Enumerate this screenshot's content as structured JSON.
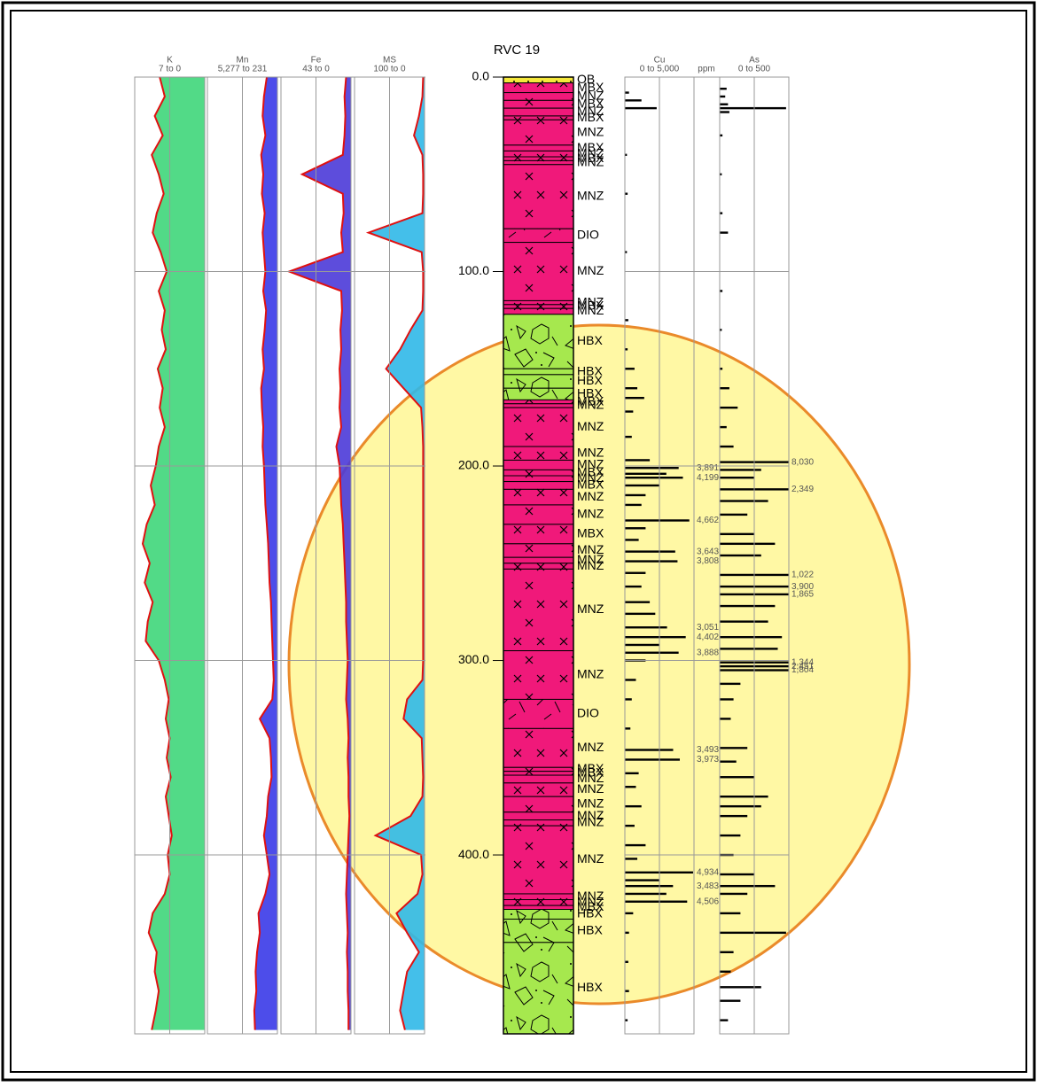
{
  "chart_data": {
    "type": "well-log",
    "title": "RVC 19",
    "ylim": [
      0,
      492
    ],
    "yticks": [
      {
        "value": 0,
        "label": "0.0"
      },
      {
        "value": 100,
        "label": "100.0"
      },
      {
        "value": 200,
        "label": "200.0"
      },
      {
        "value": 300,
        "label": "300.0"
      },
      {
        "value": 400,
        "label": "400.0"
      }
    ],
    "curve_depths": [
      0,
      10,
      20,
      30,
      40,
      50,
      60,
      70,
      80,
      90,
      100,
      110,
      120,
      130,
      140,
      150,
      160,
      170,
      180,
      190,
      200,
      210,
      220,
      230,
      240,
      250,
      260,
      270,
      280,
      290,
      300,
      310,
      320,
      330,
      340,
      350,
      360,
      370,
      380,
      390,
      400,
      410,
      420,
      430,
      440,
      450,
      460,
      470,
      480,
      490
    ],
    "curve_tracks": [
      {
        "name": "K",
        "range_label": "7 to 0",
        "xlim": [
          7,
          0
        ],
        "color": "#e01010",
        "fill": "#3fd67a",
        "values": [
          4.5,
          4.0,
          5.0,
          4.2,
          5.3,
          4.6,
          4.1,
          4.8,
          5.2,
          4.4,
          3.8,
          4.6,
          4.0,
          4.3,
          3.9,
          4.7,
          4.2,
          4.5,
          4.0,
          4.6,
          4.9,
          5.4,
          5.0,
          5.8,
          6.2,
          5.5,
          6.0,
          5.2,
          5.7,
          5.9,
          4.6,
          4.0,
          3.6,
          3.9,
          3.5,
          3.8,
          3.4,
          3.9,
          3.6,
          3.3,
          3.7,
          3.5,
          4.0,
          5.2,
          5.6,
          4.8,
          5.0,
          4.6,
          4.9,
          5.3
        ]
      },
      {
        "name": "Mn",
        "range_label": "5,277 to 231",
        "xlim": [
          5277,
          231
        ],
        "color": "#e01010",
        "fill": "#3a3ae8",
        "values": [
          1000,
          1200,
          1300,
          1100,
          1400,
          1250,
          1350,
          1150,
          1300,
          1200,
          1100,
          1250,
          1050,
          1150,
          1300,
          1200,
          1400,
          1350,
          1250,
          1300,
          1200,
          1150,
          1100,
          1000,
          900,
          850,
          800,
          700,
          650,
          600,
          550,
          500,
          600,
          1500,
          800,
          700,
          650,
          900,
          1000,
          1200,
          1000,
          800,
          1100,
          1600,
          1500,
          1700,
          1800,
          1750,
          1900,
          1850
        ]
      },
      {
        "name": "Fe",
        "range_label": "43 to 0",
        "xlim": [
          43,
          0
        ],
        "color": "#e01010",
        "fill": "#4b3ad8",
        "values": [
          3,
          4,
          3.5,
          4,
          5,
          30,
          5,
          4.5,
          6,
          5,
          38,
          6,
          5.5,
          6.5,
          6,
          7,
          6.5,
          7,
          6,
          9,
          7,
          6.5,
          6,
          5,
          4.5,
          4,
          3.5,
          3,
          3,
          2.5,
          2,
          2.5,
          3,
          2,
          1.5,
          2,
          1.5,
          1.5,
          1,
          1.5,
          2,
          2.5,
          3,
          2.5,
          2,
          2.5,
          2,
          2,
          1.5,
          1.5
        ]
      },
      {
        "name": "MS",
        "range_label": "100 to 0",
        "xlim": [
          100,
          0
        ],
        "color": "#e01010",
        "fill": "#30b8e8",
        "values": [
          2,
          3,
          8,
          15,
          3,
          2,
          2,
          3,
          80,
          4,
          2,
          2,
          3,
          20,
          35,
          55,
          30,
          5,
          3,
          2,
          2,
          2,
          2,
          2,
          2,
          2,
          2,
          2,
          2,
          2,
          2,
          3,
          25,
          30,
          4,
          3,
          2,
          3,
          20,
          70,
          5,
          3,
          10,
          40,
          25,
          8,
          25,
          30,
          35,
          28
        ]
      }
    ],
    "lithology_colors": {
      "OB": "#f5e83c",
      "MBX": "#f0197a",
      "MNZ": "#f0197a",
      "DIO": "#f0197a",
      "HBX": "#a6e84e"
    },
    "lithology_patterns": {
      "OB": "dots",
      "MBX": "crosses",
      "MNZ": "crosses",
      "DIO": "slashes",
      "HBX": "breccia"
    },
    "lithology": [
      {
        "top": 0,
        "bottom": 3,
        "code": "OB"
      },
      {
        "top": 3,
        "bottom": 8,
        "code": "MBX"
      },
      {
        "top": 8,
        "bottom": 12,
        "code": "MNZ"
      },
      {
        "top": 12,
        "bottom": 16,
        "code": "MBX"
      },
      {
        "top": 16,
        "bottom": 20,
        "code": "MNZ"
      },
      {
        "top": 20,
        "bottom": 22,
        "code": "MBX"
      },
      {
        "top": 22,
        "bottom": 35,
        "code": "MNZ"
      },
      {
        "top": 35,
        "bottom": 38,
        "code": "MBX"
      },
      {
        "top": 38,
        "bottom": 41,
        "code": "MNZ"
      },
      {
        "top": 41,
        "bottom": 43,
        "code": "MBX"
      },
      {
        "top": 43,
        "bottom": 45,
        "code": "MNZ"
      },
      {
        "top": 45,
        "bottom": 78,
        "code": "MNZ"
      },
      {
        "top": 78,
        "bottom": 85,
        "code": "DIO"
      },
      {
        "top": 85,
        "bottom": 115,
        "code": "MNZ"
      },
      {
        "top": 115,
        "bottom": 117,
        "code": "MNZ"
      },
      {
        "top": 117,
        "bottom": 119,
        "code": "MBX"
      },
      {
        "top": 119,
        "bottom": 122,
        "code": "MNZ"
      },
      {
        "top": 122,
        "bottom": 150,
        "code": "HBX"
      },
      {
        "top": 150,
        "bottom": 153,
        "code": "HBX"
      },
      {
        "top": 153,
        "bottom": 160,
        "code": "HBX"
      },
      {
        "top": 160,
        "bottom": 166,
        "code": "HBX"
      },
      {
        "top": 166,
        "bottom": 168,
        "code": "MBX"
      },
      {
        "top": 168,
        "bottom": 170,
        "code": "MNZ"
      },
      {
        "top": 170,
        "bottom": 190,
        "code": "MNZ"
      },
      {
        "top": 190,
        "bottom": 197,
        "code": "MNZ"
      },
      {
        "top": 197,
        "bottom": 202,
        "code": "MNZ"
      },
      {
        "top": 202,
        "bottom": 205,
        "code": "MBX"
      },
      {
        "top": 205,
        "bottom": 208,
        "code": "MNZ"
      },
      {
        "top": 208,
        "bottom": 212,
        "code": "MBX"
      },
      {
        "top": 212,
        "bottom": 220,
        "code": "MNZ"
      },
      {
        "top": 220,
        "bottom": 230,
        "code": "MNZ"
      },
      {
        "top": 230,
        "bottom": 240,
        "code": "MBX"
      },
      {
        "top": 240,
        "bottom": 247,
        "code": "MNZ"
      },
      {
        "top": 247,
        "bottom": 250,
        "code": "MNZ"
      },
      {
        "top": 250,
        "bottom": 253,
        "code": "MNZ"
      },
      {
        "top": 253,
        "bottom": 295,
        "code": "MNZ"
      },
      {
        "top": 295,
        "bottom": 320,
        "code": "MNZ"
      },
      {
        "top": 320,
        "bottom": 335,
        "code": "DIO"
      },
      {
        "top": 335,
        "bottom": 355,
        "code": "MNZ"
      },
      {
        "top": 355,
        "bottom": 357,
        "code": "MBX"
      },
      {
        "top": 357,
        "bottom": 359,
        "code": "MBX"
      },
      {
        "top": 359,
        "bottom": 363,
        "code": "MNZ"
      },
      {
        "top": 363,
        "bottom": 370,
        "code": "MNZ"
      },
      {
        "top": 370,
        "bottom": 378,
        "code": "MNZ"
      },
      {
        "top": 378,
        "bottom": 382,
        "code": "MNZ"
      },
      {
        "top": 382,
        "bottom": 385,
        "code": "MNZ"
      },
      {
        "top": 385,
        "bottom": 420,
        "code": "MNZ"
      },
      {
        "top": 420,
        "bottom": 423,
        "code": "MNZ"
      },
      {
        "top": 423,
        "bottom": 426,
        "code": "MNZ"
      },
      {
        "top": 426,
        "bottom": 428,
        "code": "MBX"
      },
      {
        "top": 428,
        "bottom": 433,
        "code": "HBX"
      },
      {
        "top": 433,
        "bottom": 445,
        "code": "HBX"
      },
      {
        "top": 445,
        "bottom": 492,
        "code": "HBX"
      }
    ],
    "bar_tracks": [
      {
        "name": "Cu",
        "range_label": "0 to 5,000",
        "unit": "ppm",
        "xlim": [
          0,
          5000
        ],
        "color": "#000000",
        "depths": [
          8,
          12,
          16,
          40,
          60,
          90,
          125,
          140,
          150,
          160,
          165,
          172,
          185,
          197,
          201,
          204,
          206,
          210,
          215,
          220,
          228,
          232,
          238,
          244,
          249,
          255,
          262,
          270,
          276,
          283,
          288,
          292,
          296,
          300,
          310,
          320,
          335,
          346,
          351,
          358,
          365,
          375,
          385,
          395,
          402,
          409,
          413,
          416,
          420,
          424,
          430,
          440,
          455,
          470,
          485
        ],
        "values": [
          300,
          1200,
          2300,
          150,
          200,
          150,
          250,
          200,
          700,
          900,
          1400,
          600,
          500,
          1800,
          3891,
          3000,
          4199,
          2500,
          1500,
          1200,
          4662,
          1500,
          1000,
          3643,
          3808,
          1500,
          1200,
          1800,
          2200,
          3051,
          4402,
          2500,
          3888,
          1500,
          800,
          500,
          400,
          3493,
          3973,
          1000,
          800,
          1200,
          700,
          1500,
          900,
          4934,
          2500,
          3483,
          3000,
          4506,
          600,
          300,
          250,
          300,
          200
        ],
        "value_labels": [
          null,
          null,
          null,
          null,
          null,
          null,
          null,
          null,
          null,
          null,
          null,
          null,
          null,
          null,
          "3,891",
          null,
          "4,199",
          null,
          null,
          null,
          "4,662",
          null,
          null,
          "3,643",
          "3,808",
          null,
          null,
          null,
          null,
          "3,051",
          "4,402",
          null,
          "3,888",
          null,
          null,
          null,
          null,
          "3,493",
          "3,973",
          null,
          null,
          null,
          null,
          null,
          null,
          "4,934",
          null,
          "3,483",
          null,
          "4,506",
          null,
          null,
          null,
          null,
          null
        ]
      },
      {
        "name": "As",
        "range_label": "0 to 500",
        "xlim": [
          0,
          500
        ],
        "color": "#000000",
        "depths": [
          6,
          10,
          14,
          16,
          18,
          30,
          50,
          70,
          80,
          110,
          130,
          150,
          160,
          170,
          180,
          190,
          198,
          202,
          206,
          212,
          218,
          225,
          235,
          240,
          246,
          256,
          262,
          266,
          272,
          280,
          288,
          294,
          301,
          303,
          305,
          312,
          320,
          330,
          345,
          352,
          360,
          370,
          375,
          380,
          390,
          400,
          410,
          416,
          420,
          430,
          440,
          450,
          460,
          468,
          475,
          485
        ],
        "values": [
          50,
          40,
          60,
          480,
          70,
          20,
          15,
          20,
          60,
          20,
          15,
          20,
          70,
          130,
          50,
          100,
          8030,
          300,
          250,
          2349,
          350,
          200,
          250,
          400,
          300,
          1022,
          3900,
          1865,
          400,
          350,
          450,
          420,
          1344,
          2451,
          1804,
          150,
          100,
          80,
          200,
          120,
          250,
          350,
          300,
          200,
          150,
          100,
          250,
          400,
          200,
          150,
          480,
          100,
          80,
          300,
          150,
          60
        ],
        "value_labels": [
          null,
          null,
          null,
          null,
          null,
          null,
          null,
          null,
          null,
          null,
          null,
          null,
          null,
          null,
          null,
          null,
          "8,030",
          null,
          null,
          "2,349",
          null,
          null,
          null,
          null,
          null,
          "1,022",
          "3,900",
          "1,865",
          null,
          null,
          null,
          null,
          "1,344",
          "2,451",
          "1,804",
          null,
          null,
          null,
          null,
          null,
          null,
          null,
          null,
          null,
          null,
          null,
          null,
          null,
          null,
          null,
          null,
          null,
          null,
          null,
          null,
          null
        ]
      }
    ]
  }
}
